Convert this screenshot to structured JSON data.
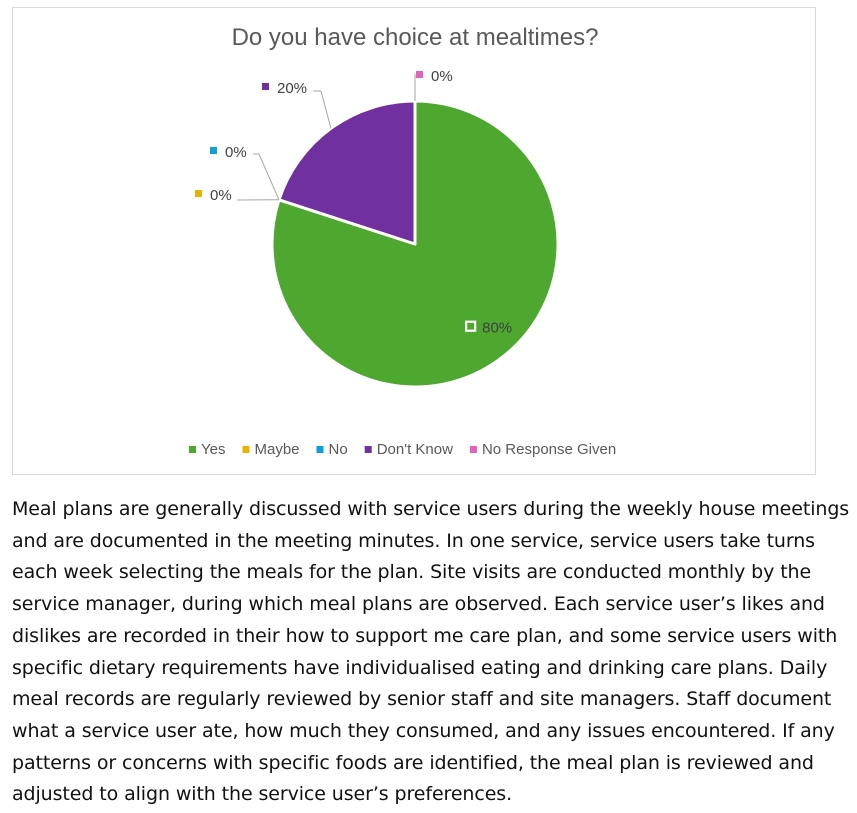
{
  "chart_data": {
    "type": "pie",
    "title": "Do you have choice at mealtimes?",
    "categories": [
      "Yes",
      "Maybe",
      "No",
      "Don't Know",
      "No Response Given"
    ],
    "values": [
      80,
      0,
      0,
      20,
      0
    ],
    "value_unit": "%",
    "data_labels": [
      "80%",
      "0%",
      "0%",
      "20%",
      "0%"
    ],
    "colors": [
      "#4ea72e",
      "#e9b400",
      "#0f9ed5",
      "#7030a0",
      "#e55fbf"
    ],
    "start_angle_deg": 0,
    "direction": "clockwise",
    "legend_position": "bottom",
    "grid": false
  },
  "description": {
    "paragraph": "Meal plans are generally discussed with service users during the weekly house meetings and are documented in the meeting minutes. In one service, service users take turns each week selecting the meals for the plan. Site visits are conducted monthly by the service manager, during which meal plans are observed. Each service user’s likes and dislikes are recorded in their how to support me care plan, and some service users with specific dietary requirements have individualised eating and drinking care plans. Daily meal records are regularly reviewed by senior staff and site managers. Staff document what a service user ate, how much they consumed, and any issues encountered. If any patterns or concerns with specific foods are identified, the meal plan is reviewed and adjusted to align with the service user’s preferences."
  }
}
